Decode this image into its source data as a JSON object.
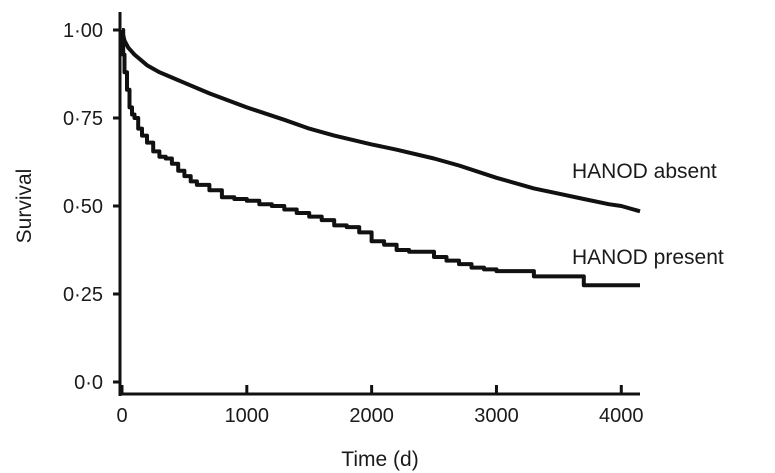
{
  "chart_data": {
    "type": "line",
    "title": "",
    "xlabel": "Time (d)",
    "ylabel": "Survival",
    "xlim": [
      0,
      4150
    ],
    "ylim": [
      0,
      1.0
    ],
    "x_ticks": [
      0,
      1000,
      2000,
      3000,
      4000
    ],
    "x_tick_labels": [
      "0",
      "1000",
      "2000",
      "3000",
      "4000"
    ],
    "y_ticks": [
      0,
      0.25,
      0.5,
      0.75,
      1.0
    ],
    "y_tick_labels": [
      "0·0",
      "0·25",
      "0·50",
      "0·75",
      "1·00"
    ],
    "grid": false,
    "legend": "none",
    "series": [
      {
        "name": "HANOD absent",
        "step": false,
        "x": [
          0,
          20,
          50,
          100,
          200,
          300,
          400,
          500,
          700,
          1000,
          1300,
          1500,
          1700,
          2000,
          2200,
          2500,
          2700,
          3000,
          3300,
          3500,
          3700,
          3900,
          4000,
          4150
        ],
        "y": [
          1.0,
          0.97,
          0.95,
          0.93,
          0.9,
          0.88,
          0.865,
          0.85,
          0.82,
          0.78,
          0.745,
          0.72,
          0.7,
          0.675,
          0.66,
          0.635,
          0.615,
          0.58,
          0.55,
          0.535,
          0.52,
          0.505,
          0.5,
          0.485
        ]
      },
      {
        "name": "HANOD present",
        "step": true,
        "x": [
          0,
          10,
          20,
          40,
          60,
          80,
          100,
          130,
          160,
          200,
          250,
          300,
          350,
          400,
          450,
          500,
          550,
          600,
          700,
          800,
          900,
          1000,
          1100,
          1200,
          1300,
          1400,
          1500,
          1600,
          1700,
          1800,
          1900,
          2000,
          2100,
          2200,
          2300,
          2500,
          2600,
          2700,
          2800,
          2900,
          3000,
          3300,
          3700,
          4150
        ],
        "y": [
          1.0,
          0.93,
          0.88,
          0.83,
          0.78,
          0.76,
          0.75,
          0.72,
          0.7,
          0.68,
          0.655,
          0.64,
          0.635,
          0.62,
          0.6,
          0.585,
          0.57,
          0.56,
          0.545,
          0.525,
          0.52,
          0.515,
          0.505,
          0.5,
          0.49,
          0.48,
          0.47,
          0.46,
          0.445,
          0.44,
          0.425,
          0.4,
          0.39,
          0.375,
          0.37,
          0.355,
          0.345,
          0.335,
          0.325,
          0.32,
          0.315,
          0.3,
          0.275,
          0.275
        ]
      }
    ]
  }
}
